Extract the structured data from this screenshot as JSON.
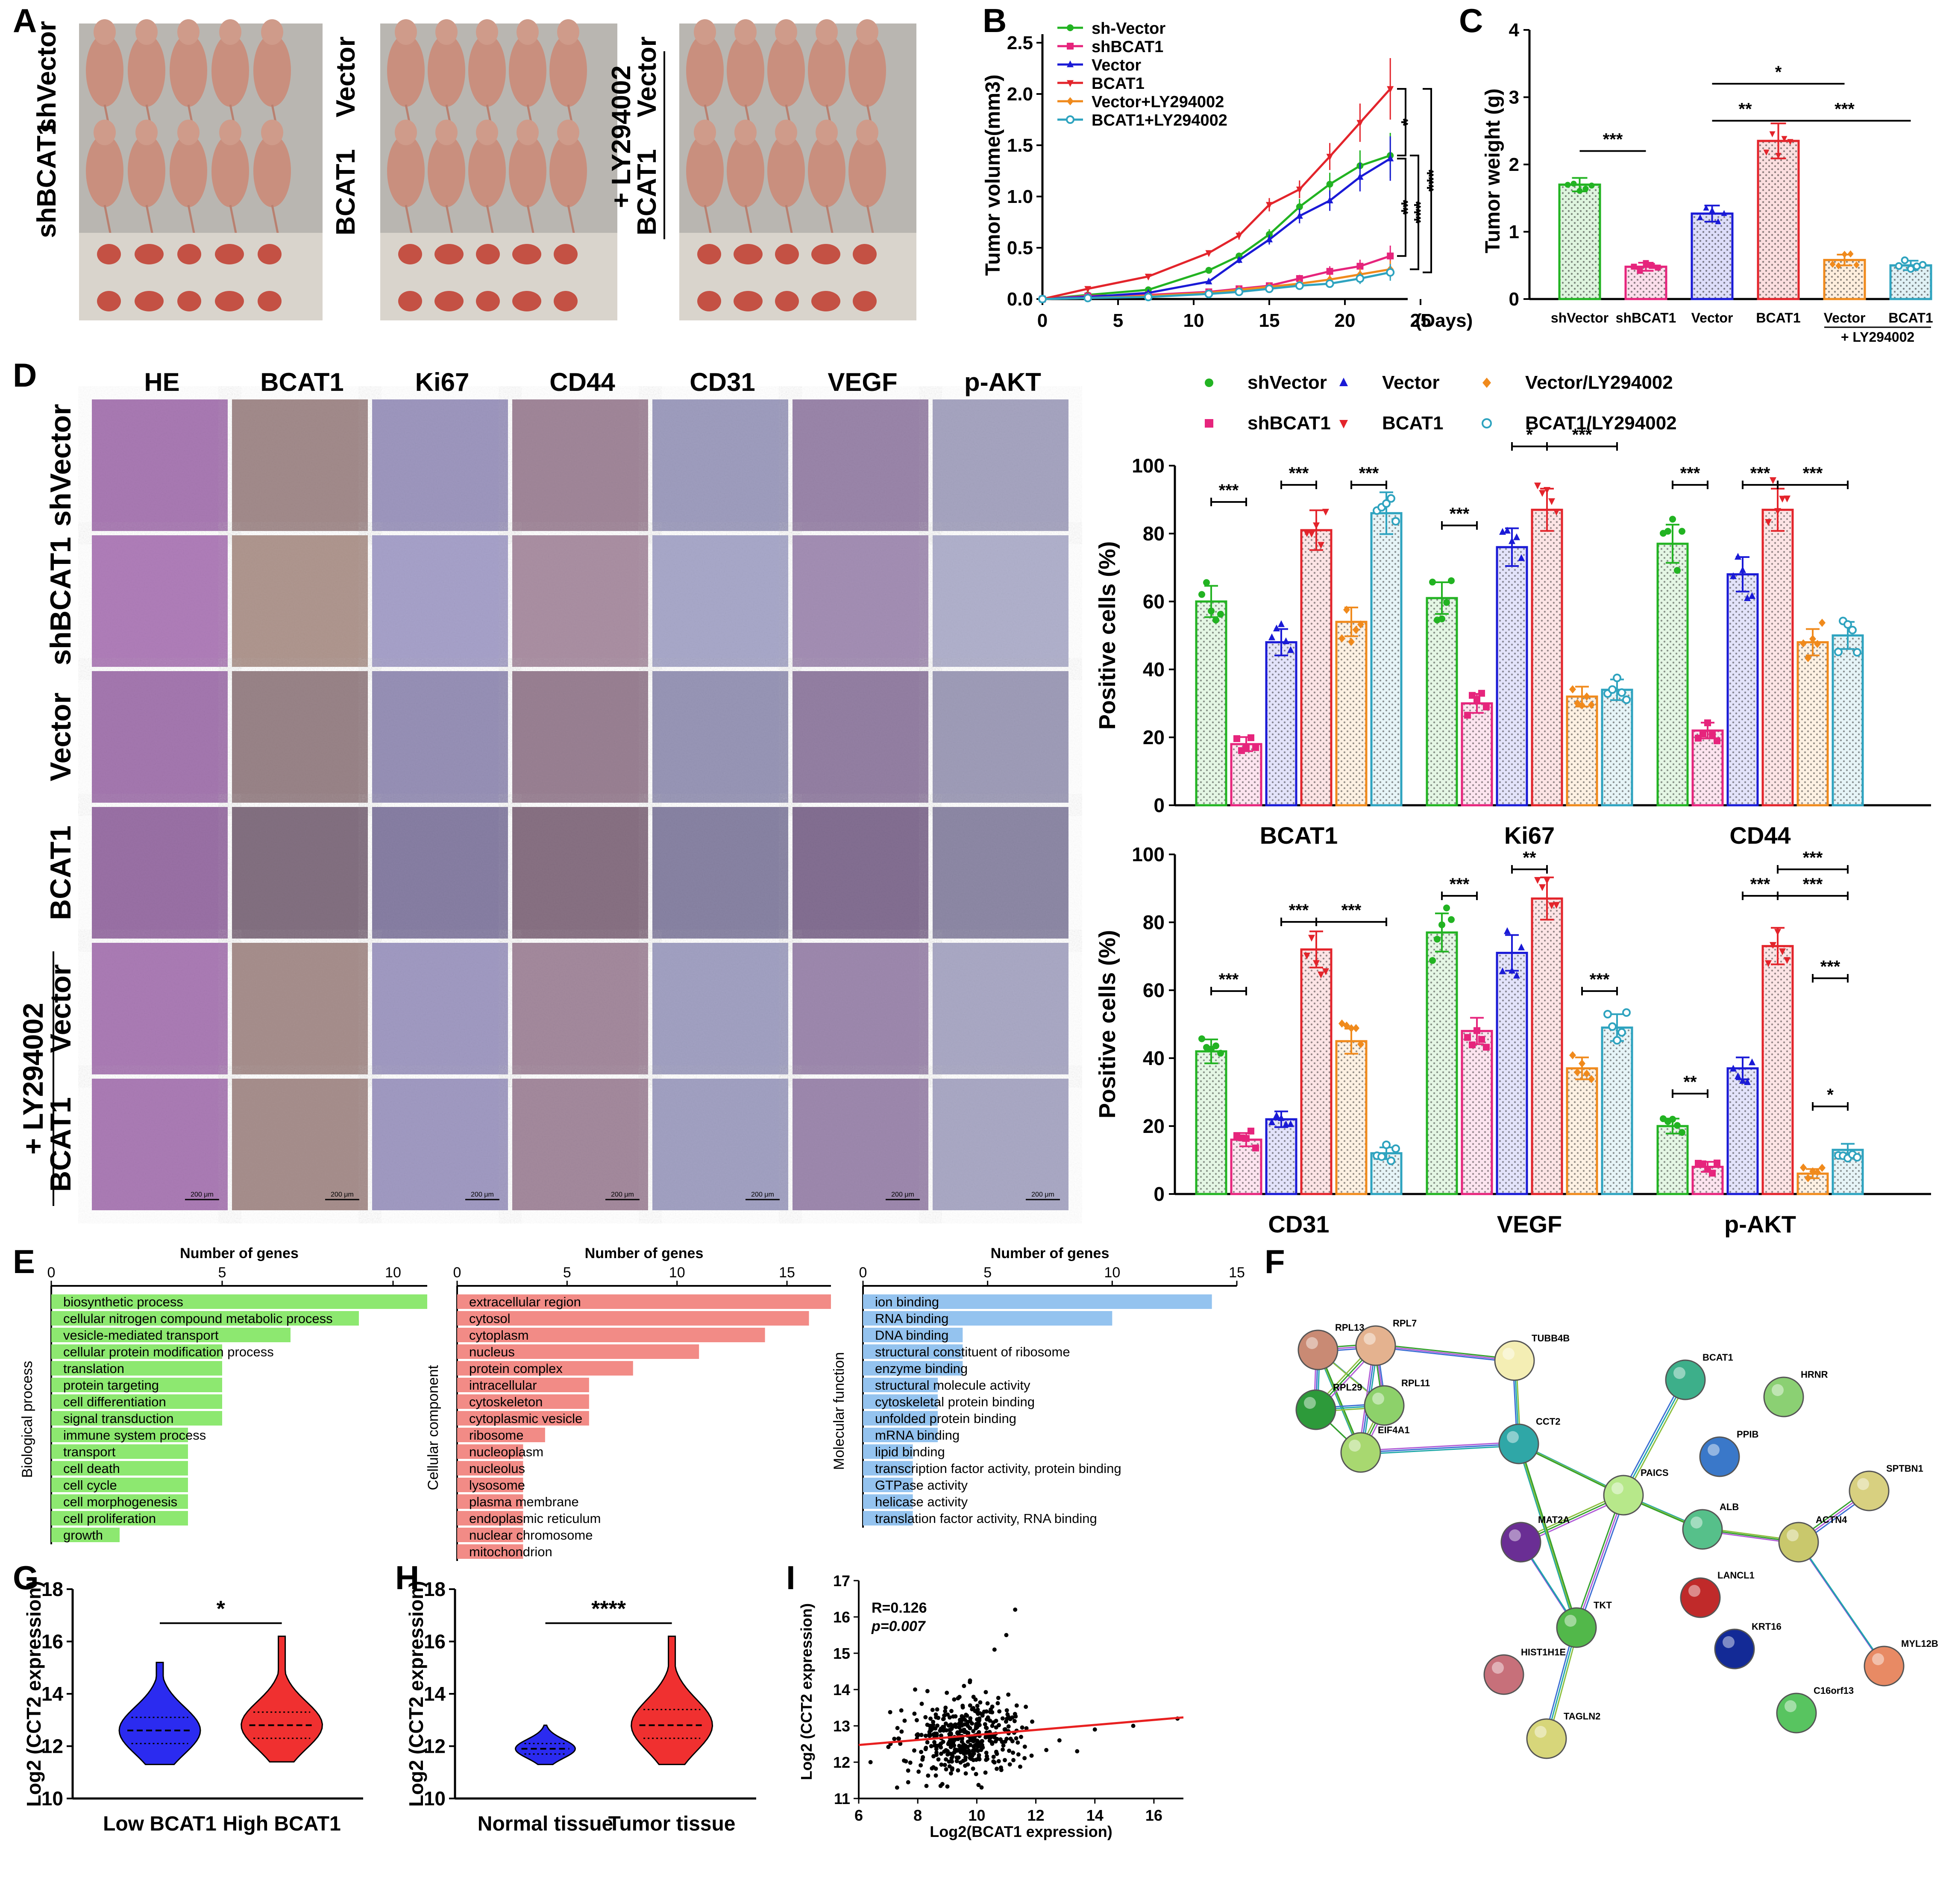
{
  "figure": {
    "panels": {
      "A": "A",
      "B": "B",
      "C": "C",
      "D": "D",
      "E": "E",
      "F": "F",
      "G": "G",
      "H": "H",
      "I": "I"
    },
    "photo_groups": [
      {
        "label_lines": [
          "shBCAT1",
          "shVector"
        ]
      },
      {
        "label_lines": [
          "BCAT1",
          "Vector"
        ]
      },
      {
        "label_lines": [
          "BCAT1",
          "Vector"
        ],
        "treatment": "+ LY294002"
      }
    ],
    "ihc": {
      "columns": [
        "HE",
        "BCAT1",
        "Ki67",
        "CD44",
        "CD31",
        "VEGF",
        "p-AKT"
      ],
      "rows": [
        "shVector",
        "shBCAT1",
        "Vector",
        "BCAT1",
        "Vector",
        "BCAT1"
      ],
      "treatment": "+ LY294002",
      "scale_bar": "200 μm"
    },
    "colors": {
      "shVector": "#22b322",
      "shBCAT1": "#e6247c",
      "Vector": "#1a1ad6",
      "BCAT1": "#e3242b",
      "VectorLY": "#f08a1c",
      "BCAT1LY": "#2ea3bf"
    },
    "string_network": {
      "nodes": [
        "RPL13",
        "RPL7",
        "RPL29",
        "RPL11",
        "EIF4A1",
        "TUBB4B",
        "CCT2",
        "BCAT1",
        "HRNR",
        "PPIB",
        "PAICS",
        "SPTBN1",
        "ALB",
        "ACTN4",
        "MAT2A",
        "LANCL1",
        "KRT16",
        "TKT",
        "HIST1H1E",
        "MYL12B",
        "C16orf13",
        "TAGLN2"
      ]
    }
  },
  "chart_data": [
    {
      "panel": "B",
      "type": "line",
      "title": "",
      "xlabel": "(Days)",
      "ylabel": "Tumor volume(mm3)",
      "xlim": [
        0,
        25
      ],
      "ylim": [
        0,
        2.5
      ],
      "xticks": [
        "0",
        "5",
        "10",
        "15",
        "20",
        "25"
      ],
      "yticks": [
        "0.0",
        "0.5",
        "1.0",
        "1.5",
        "2.0",
        "2.5"
      ],
      "x": [
        0,
        3,
        7,
        11,
        13,
        15,
        17,
        19,
        21,
        23
      ],
      "series": [
        {
          "name": "sh-Vector",
          "values": [
            0,
            0.04,
            0.09,
            0.28,
            0.42,
            0.63,
            0.9,
            1.12,
            1.3,
            1.4
          ]
        },
        {
          "name": "shBCAT1",
          "values": [
            0,
            0.03,
            0.04,
            0.07,
            0.1,
            0.13,
            0.2,
            0.27,
            0.32,
            0.42
          ]
        },
        {
          "name": "Vector",
          "values": [
            0,
            0.02,
            0.06,
            0.17,
            0.38,
            0.58,
            0.81,
            0.96,
            1.19,
            1.37
          ]
        },
        {
          "name": "BCAT1",
          "values": [
            0,
            0.1,
            0.22,
            0.45,
            0.62,
            0.92,
            1.07,
            1.39,
            1.72,
            2.05
          ]
        },
        {
          "name": "Vector+LY294002",
          "values": [
            0,
            0.01,
            0.03,
            0.06,
            0.09,
            0.12,
            0.15,
            0.19,
            0.24,
            0.29
          ]
        },
        {
          "name": "BCAT1+LY294002",
          "values": [
            0,
            0.01,
            0.02,
            0.05,
            0.07,
            0.1,
            0.13,
            0.15,
            0.2,
            0.26
          ]
        }
      ],
      "errors": [
        0.02,
        0.02,
        0.03,
        0.06,
        0.08,
        0.1,
        0.12,
        0.15,
        0.18,
        0.25
      ],
      "annotations": [
        "*",
        "**",
        "***",
        "***"
      ]
    },
    {
      "panel": "C",
      "type": "bar",
      "ylabel": "Tumor weight (g)",
      "ylim": [
        0,
        4
      ],
      "yticks": [
        "0",
        "1",
        "2",
        "3",
        "4"
      ],
      "categories": [
        "shVector",
        "shBCAT1",
        "Vector",
        "BCAT1",
        "Vector",
        "BCAT1"
      ],
      "group_label": "+ LY294002",
      "values": [
        1.7,
        0.48,
        1.27,
        2.35,
        0.58,
        0.5
      ],
      "errors": [
        0.1,
        0.06,
        0.12,
        0.26,
        0.08,
        0.07
      ],
      "annotations": [
        "***",
        "*",
        "**",
        "***"
      ]
    },
    {
      "panel": "D",
      "type": "bar",
      "ylabel": "Positive cells (%)",
      "ylim": [
        0,
        100
      ],
      "yticks": [
        "0",
        "20",
        "40",
        "60",
        "80",
        "100"
      ],
      "legend": [
        "shVector",
        "Vector",
        "Vector/LY294002",
        "shBCAT1",
        "BCAT1",
        "BCAT1/LY294002"
      ],
      "groups": [
        {
          "name": "BCAT1",
          "values": [
            60,
            18,
            48,
            81,
            54,
            86
          ]
        },
        {
          "name": "Ki67",
          "values": [
            61,
            30,
            76,
            87,
            32,
            34
          ]
        },
        {
          "name": "CD44",
          "values": [
            77,
            22,
            68,
            87,
            48,
            50
          ]
        },
        {
          "name": "CD31",
          "values": [
            42,
            16,
            22,
            72,
            45,
            12
          ]
        },
        {
          "name": "VEGF",
          "values": [
            77,
            48,
            71,
            87,
            37,
            49
          ]
        },
        {
          "name": "p-AKT",
          "values": [
            20,
            8,
            37,
            73,
            6,
            13
          ]
        }
      ],
      "significance": [
        "***",
        "***",
        "***",
        "***",
        "*",
        "***",
        "***",
        "***",
        "***",
        "***",
        "***",
        "***",
        "***",
        "***",
        "**",
        "***",
        "***",
        "**",
        "***",
        "***",
        "*"
      ]
    },
    {
      "panel": "E",
      "type": "bar",
      "orientation": "horizontal",
      "subplots": [
        {
          "xlabel": "Number of genes",
          "category_axis": "Biological process",
          "xlim": [
            0,
            11
          ],
          "xticks": [
            "0",
            "5",
            "10"
          ],
          "categories": [
            "biosynthetic process",
            "cellular nitrogen compound metabolic process",
            "vesicle-mediated transport",
            "cellular protein modification process",
            "translation",
            "protein targeting",
            "cell differentiation",
            "signal transduction",
            "immune system process",
            "transport",
            "cell death",
            "cell cycle",
            "cell morphogenesis",
            "cell proliferation",
            "growth"
          ],
          "values": [
            11,
            9,
            7,
            5,
            5,
            5,
            5,
            5,
            4,
            4,
            4,
            4,
            4,
            4,
            2
          ]
        },
        {
          "xlabel": "Number of genes",
          "category_axis": "Cellular component",
          "xlim": [
            0,
            17
          ],
          "xticks": [
            "0",
            "5",
            "10",
            "15"
          ],
          "categories": [
            "extracellular region",
            "cytosol",
            "cytoplasm",
            "nucleus",
            "protein complex",
            "intracellular",
            "cytoskeleton",
            "cytoplasmic vesicle",
            "ribosome",
            "nucleoplasm",
            "nucleolus",
            "lysosome",
            "plasma membrane",
            "endoplasmic reticulum",
            "nuclear chromosome",
            "mitochondrion"
          ],
          "values": [
            17,
            16,
            14,
            11,
            8,
            6,
            6,
            6,
            4,
            3,
            3,
            3,
            3,
            3,
            3,
            3
          ]
        },
        {
          "xlabel": "Number of genes",
          "category_axis": "Molecular function",
          "xlim": [
            0,
            15
          ],
          "xticks": [
            "0",
            "5",
            "10",
            "15"
          ],
          "categories": [
            "ion binding",
            "RNA binding",
            "DNA binding",
            "structural constituent of ribosome",
            "enzyme binding",
            "structural molecule activity",
            "cytoskeletal protein binding",
            "unfolded protein binding",
            "mRNA binding",
            "lipid binding",
            "transcription factor activity, protein binding",
            "GTPase activity",
            "helicase activity",
            "translation factor activity, RNA binding"
          ],
          "values": [
            14,
            10,
            4,
            4,
            4,
            3,
            3,
            3,
            3,
            2,
            2,
            2,
            2,
            2
          ]
        }
      ]
    },
    {
      "panel": "G",
      "type": "violin",
      "ylabel": "Log2 (CCT2 expression)",
      "ylim": [
        10,
        18
      ],
      "yticks": [
        "10",
        "12",
        "14",
        "16",
        "18"
      ],
      "categories": [
        "Low BCAT1",
        "High BCAT1"
      ],
      "medians": [
        12.6,
        12.8
      ],
      "q1": [
        12.1,
        12.3
      ],
      "q3": [
        13.1,
        13.3
      ],
      "mins": [
        11.3,
        11.4
      ],
      "maxs": [
        15.2,
        16.2
      ],
      "annotation": "*"
    },
    {
      "panel": "H",
      "type": "violin",
      "ylabel": "Log2 (CCT2 expression)",
      "ylim": [
        10,
        18
      ],
      "yticks": [
        "10",
        "12",
        "14",
        "16",
        "18"
      ],
      "categories": [
        "Normal tissue",
        "Tumor tissue"
      ],
      "medians": [
        11.9,
        12.8
      ],
      "q1": [
        11.7,
        12.3
      ],
      "q3": [
        12.1,
        13.4
      ],
      "mins": [
        11.3,
        11.3
      ],
      "maxs": [
        12.8,
        16.2
      ],
      "annotation": "****"
    },
    {
      "panel": "I",
      "type": "scatter",
      "xlabel": "Log2(BCAT1 expression)",
      "ylabel": "Log2 (CCT2 expression)",
      "xlim": [
        6,
        17
      ],
      "ylim": [
        11,
        17
      ],
      "xticks": [
        "6",
        "8",
        "10",
        "12",
        "14",
        "16"
      ],
      "yticks": [
        "11",
        "12",
        "13",
        "14",
        "15",
        "16",
        "17"
      ],
      "stats": [
        "R=0.126",
        "p=0.007"
      ],
      "fit": {
        "slope": 0.069,
        "intercept": 12.06
      },
      "outliers": [
        [
          6.4,
          12.0
        ],
        [
          14.0,
          12.9
        ],
        [
          15.3,
          13.0
        ],
        [
          16.8,
          13.2
        ],
        [
          13.4,
          12.3
        ],
        [
          11.3,
          16.2
        ],
        [
          10.6,
          15.1
        ],
        [
          11.0,
          15.5
        ],
        [
          7.3,
          11.3
        ],
        [
          12.8,
          12.6
        ]
      ]
    }
  ]
}
